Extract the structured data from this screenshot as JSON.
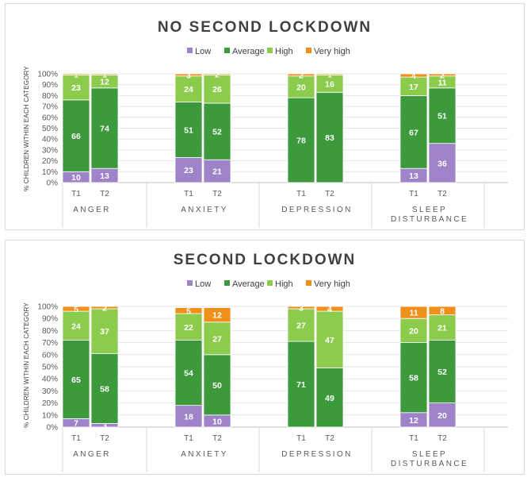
{
  "colors": {
    "Low": "#9e83c8",
    "Average": "#3c9a3c",
    "High": "#8ccc4c",
    "Very high": "#f0901c"
  },
  "chart_data": [
    {
      "type": "bar",
      "stacked": true,
      "title": "NO SECOND LOCKDOWN",
      "ylabel": "% CHILDREN WITHIN EACH CATEGORY",
      "ylim": [
        0,
        100
      ],
      "yticks": [
        "0%",
        "10%",
        "20%",
        "30%",
        "40%",
        "50%",
        "60%",
        "70%",
        "80%",
        "90%",
        "100%"
      ],
      "legend": [
        "Low",
        "Average",
        "High",
        "Very high"
      ],
      "groups": [
        {
          "name_lines": [
            "ANGER"
          ],
          "bars": [
            {
              "label": "T1",
              "values": [
                10,
                66,
                23,
                1
              ]
            },
            {
              "label": "T2",
              "values": [
                13,
                74,
                12,
                1
              ]
            }
          ]
        },
        {
          "name_lines": [
            "ANXIETY"
          ],
          "bars": [
            {
              "label": "T1",
              "values": [
                23,
                51,
                24,
                3
              ]
            },
            {
              "label": "T2",
              "values": [
                21,
                52,
                26,
                2
              ]
            }
          ]
        },
        {
          "name_lines": [
            "DEPRESSION"
          ],
          "bars": [
            {
              "label": "T1",
              "values": [
                0,
                78,
                20,
                2
              ]
            },
            {
              "label": "T2",
              "values": [
                0,
                83,
                16,
                1
              ]
            }
          ]
        },
        {
          "name_lines": [
            "SLEEP",
            "DISTURBANCE"
          ],
          "bars": [
            {
              "label": "T1",
              "values": [
                13,
                67,
                17,
                4
              ]
            },
            {
              "label": "T2",
              "values": [
                36,
                51,
                11,
                2
              ]
            }
          ]
        }
      ]
    },
    {
      "type": "bar",
      "stacked": true,
      "title": "SECOND LOCKDOWN",
      "ylabel": "% CHILDREN WITHIN EACH CATEGORY",
      "ylim": [
        0,
        100
      ],
      "yticks": [
        "0%",
        "10%",
        "20%",
        "30%",
        "40%",
        "50%",
        "60%",
        "70%",
        "80%",
        "90%",
        "100%"
      ],
      "legend": [
        "Low",
        "Average",
        "High",
        "Very high"
      ],
      "groups": [
        {
          "name_lines": [
            "ANGER"
          ],
          "bars": [
            {
              "label": "T1",
              "values": [
                7,
                65,
                24,
                5
              ]
            },
            {
              "label": "T2",
              "values": [
                3,
                58,
                37,
                2
              ]
            }
          ]
        },
        {
          "name_lines": [
            "ANXIETY"
          ],
          "bars": [
            {
              "label": "T1",
              "values": [
                18,
                54,
                22,
                5
              ]
            },
            {
              "label": "T2",
              "values": [
                10,
                50,
                27,
                12
              ]
            }
          ]
        },
        {
          "name_lines": [
            "DEPRESSION"
          ],
          "bars": [
            {
              "label": "T1",
              "values": [
                0,
                71,
                27,
                3
              ]
            },
            {
              "label": "T2",
              "values": [
                0,
                49,
                47,
                4
              ]
            }
          ]
        },
        {
          "name_lines": [
            "SLEEP",
            "DISTURBANCE"
          ],
          "bars": [
            {
              "label": "T1",
              "values": [
                12,
                58,
                20,
                11
              ]
            },
            {
              "label": "T2",
              "values": [
                20,
                52,
                21,
                8
              ]
            }
          ]
        }
      ]
    }
  ]
}
